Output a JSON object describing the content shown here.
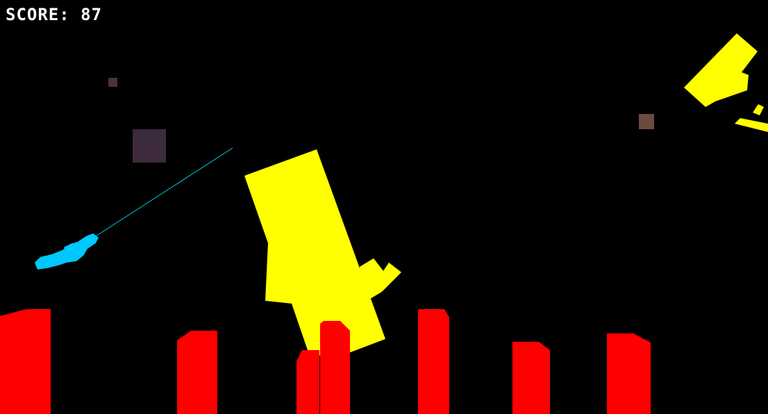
{
  "hud": {
    "score_label": "SCORE:",
    "score_value": "87"
  },
  "colors": {
    "background": "#000000",
    "score_text": "#ffffff",
    "player_ship": "#00c8ff",
    "laser_beam": "#00d0e8",
    "yellow_debris": "#ffff00",
    "red_towers": "#ff0000",
    "dark_block": "#3d2a3d",
    "brown_block": "#6b4a3f",
    "small_block": "#4a3338"
  },
  "scene": {
    "player": "cyan-spaceship",
    "projectile": "laser-beam",
    "obstacles": "red-towers",
    "enemies": "yellow-debris-chunks",
    "particles": "floating-square-debris"
  }
}
